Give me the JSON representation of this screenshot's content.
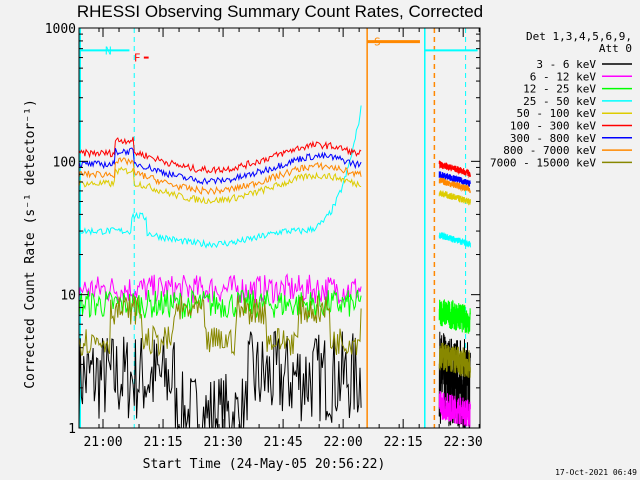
{
  "chart_data": {
    "type": "line",
    "title": "RHESSI Observing Summary Count Rates, Corrected",
    "xlabel": "Start Time (24-May-05 20:56:22)",
    "ylabel": "Corrected Count Rate (s⁻¹ detector⁻¹)",
    "ylog": true,
    "ylim": [
      1,
      1000
    ],
    "yticks": [
      {
        "value": 1,
        "label": "1"
      },
      {
        "value": 10,
        "label": "10"
      },
      {
        "value": 100,
        "label": "100"
      },
      {
        "value": 1000,
        "label": "1000"
      }
    ],
    "xlim_minutes": [
      20.9,
      22.57
    ],
    "xticks": [
      {
        "t": 21.0,
        "label": "21:00"
      },
      {
        "t": 21.25,
        "label": "21:15"
      },
      {
        "t": 21.5,
        "label": "21:30"
      },
      {
        "t": 21.75,
        "label": "21:45"
      },
      {
        "t": 22.0,
        "label": "22:00"
      },
      {
        "t": 22.25,
        "label": "22:15"
      },
      {
        "t": 22.5,
        "label": "22:30"
      }
    ],
    "legend_header": [
      "Det 1,3,4,5,6,9,",
      "Att 0"
    ],
    "legend_position": "right",
    "series": [
      {
        "name": "3 - 6 keV",
        "color": "#000000",
        "pre": 2.4,
        "post": 2.4,
        "pattern": "noisy-low"
      },
      {
        "name": "6 - 12 keV",
        "color": "#ff00ff",
        "pre": 11.0,
        "post": 1.5,
        "pattern": "flat"
      },
      {
        "name": "12 - 25 keV",
        "color": "#00ff00",
        "pre": 8.5,
        "post": 7.5,
        "pattern": "flat"
      },
      {
        "name": "25 - 50 keV",
        "color": "#00ffff",
        "pre": 30,
        "post": 28,
        "pattern": "rising"
      },
      {
        "name": "50 - 100 keV",
        "color": "#ddcc00",
        "pre": 68,
        "post": 58,
        "pattern": "hump"
      },
      {
        "name": "100 - 300 keV",
        "color": "#ff0000",
        "pre": 115,
        "post": 95,
        "pattern": "hump"
      },
      {
        "name": "300 - 800 keV",
        "color": "#0000ff",
        "pre": 95,
        "post": 80,
        "pattern": "hump"
      },
      {
        "name": "800 - 7000 keV",
        "color": "#ff8800",
        "pre": 80,
        "post": 72,
        "pattern": "hump"
      },
      {
        "name": "7000 - 15000 keV",
        "color": "#888800",
        "pre": 4.5,
        "post": 3.5,
        "pattern": "step"
      }
    ],
    "annotations": [
      {
        "label": "N",
        "t": 21.0,
        "value": 680,
        "color": "#00ffff"
      },
      {
        "label": "F",
        "t": 21.12,
        "value": 600,
        "color": "#ff0000"
      },
      {
        "label": "S",
        "t": 22.12,
        "value": 790,
        "color": "#ff8800"
      }
    ],
    "night_lines": [
      21.13,
      22.51
    ],
    "orange_lines": [
      22.1,
      22.38
    ],
    "cyan_lines": [
      22.34
    ],
    "timestamp": "17-Oct-2021 06:49"
  }
}
